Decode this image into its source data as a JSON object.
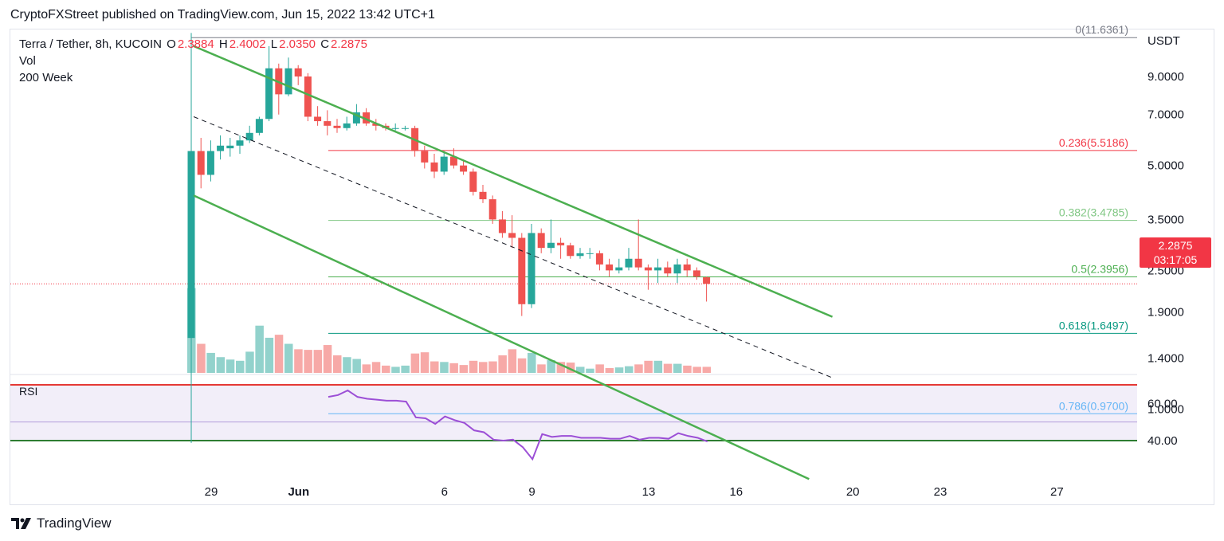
{
  "header": {
    "published": "CryptoFXStreet published on TradingView.com, Jun 15, 2022 13:42 UTC+1"
  },
  "legend": {
    "symbol": "Terra / Tether, 8h, KUCOIN",
    "o_label": "O",
    "o": "2.3884",
    "h_label": "H",
    "h": "2.4002",
    "l_label": "L",
    "l": "2.0350",
    "c_label": "C",
    "c": "2.2875",
    "vol": "Vol",
    "ma": "200 Week"
  },
  "axis": {
    "currency": "USDT",
    "price_ticks": [
      "9.0000",
      "7.0000",
      "5.0000",
      "3.5000",
      "2.5000",
      "1.9000",
      "1.4000",
      "1.0000"
    ],
    "rsi_ticks": [
      "60.00",
      "40.00"
    ],
    "date_ticks": [
      "29",
      "Jun",
      "6",
      "9",
      "13",
      "16",
      "20",
      "23",
      "27"
    ]
  },
  "last_price": {
    "price": "2.2875",
    "countdown": "03:17:05",
    "color": "#f23645"
  },
  "rsi": {
    "label": "RSI"
  },
  "branding": {
    "name": "TradingView"
  },
  "colors": {
    "up": "#26a69a",
    "down": "#ef5350",
    "channel": "#4caf50",
    "rsi_line": "#9c4fd6"
  },
  "chart_data": {
    "type": "candlestick",
    "symbol": "Terra / Tether",
    "interval": "8h",
    "exchange": "KUCOIN",
    "y_scale": "log",
    "candles": [
      {
        "o": 1.6,
        "h": 12.0,
        "l": 0.8,
        "c": 5.5
      },
      {
        "o": 5.5,
        "h": 6.0,
        "l": 4.3,
        "c": 4.7
      },
      {
        "o": 4.7,
        "h": 5.9,
        "l": 4.5,
        "c": 5.5
      },
      {
        "o": 5.5,
        "h": 6.1,
        "l": 5.2,
        "c": 5.7
      },
      {
        "o": 5.6,
        "h": 6.0,
        "l": 5.3,
        "c": 5.7
      },
      {
        "o": 5.7,
        "h": 6.1,
        "l": 5.4,
        "c": 5.9
      },
      {
        "o": 5.9,
        "h": 6.5,
        "l": 5.8,
        "c": 6.2
      },
      {
        "o": 6.2,
        "h": 6.9,
        "l": 6.1,
        "c": 6.8
      },
      {
        "o": 6.8,
        "h": 11.0,
        "l": 6.7,
        "c": 9.5
      },
      {
        "o": 9.5,
        "h": 9.8,
        "l": 7.0,
        "c": 8.0
      },
      {
        "o": 8.0,
        "h": 10.2,
        "l": 7.9,
        "c": 9.5
      },
      {
        "o": 9.5,
        "h": 9.7,
        "l": 8.5,
        "c": 9.0
      },
      {
        "o": 9.0,
        "h": 9.2,
        "l": 6.7,
        "c": 6.9
      },
      {
        "o": 6.9,
        "h": 7.4,
        "l": 6.5,
        "c": 6.7
      },
      {
        "o": 6.7,
        "h": 7.2,
        "l": 6.1,
        "c": 6.5
      },
      {
        "o": 6.5,
        "h": 6.8,
        "l": 6.2,
        "c": 6.4
      },
      {
        "o": 6.4,
        "h": 6.9,
        "l": 6.3,
        "c": 6.6
      },
      {
        "o": 6.6,
        "h": 7.5,
        "l": 6.5,
        "c": 7.1
      },
      {
        "o": 7.1,
        "h": 7.3,
        "l": 6.5,
        "c": 6.6
      },
      {
        "o": 6.6,
        "h": 6.8,
        "l": 6.3,
        "c": 6.5
      },
      {
        "o": 6.5,
        "h": 6.6,
        "l": 6.3,
        "c": 6.4
      },
      {
        "o": 6.4,
        "h": 6.6,
        "l": 6.3,
        "c": 6.4
      },
      {
        "o": 6.4,
        "h": 6.5,
        "l": 6.3,
        "c": 6.4
      },
      {
        "o": 6.4,
        "h": 6.5,
        "l": 5.3,
        "c": 5.5
      },
      {
        "o": 5.5,
        "h": 5.7,
        "l": 4.9,
        "c": 5.1
      },
      {
        "o": 5.1,
        "h": 5.4,
        "l": 4.6,
        "c": 4.8
      },
      {
        "o": 4.8,
        "h": 5.5,
        "l": 4.7,
        "c": 5.3
      },
      {
        "o": 5.3,
        "h": 5.6,
        "l": 4.9,
        "c": 5.0
      },
      {
        "o": 5.0,
        "h": 5.2,
        "l": 4.7,
        "c": 4.8
      },
      {
        "o": 4.8,
        "h": 4.9,
        "l": 4.1,
        "c": 4.2
      },
      {
        "o": 4.2,
        "h": 4.4,
        "l": 3.9,
        "c": 4.0
      },
      {
        "o": 4.0,
        "h": 4.1,
        "l": 3.4,
        "c": 3.5
      },
      {
        "o": 3.5,
        "h": 3.7,
        "l": 3.1,
        "c": 3.2
      },
      {
        "o": 3.2,
        "h": 3.6,
        "l": 2.9,
        "c": 3.1
      },
      {
        "o": 3.1,
        "h": 3.2,
        "l": 1.85,
        "c": 2.0
      },
      {
        "o": 2.0,
        "h": 3.4,
        "l": 1.95,
        "c": 3.2
      },
      {
        "o": 3.2,
        "h": 3.3,
        "l": 2.8,
        "c": 2.9
      },
      {
        "o": 2.9,
        "h": 3.5,
        "l": 2.8,
        "c": 3.0
      },
      {
        "o": 3.0,
        "h": 3.1,
        "l": 2.7,
        "c": 2.95
      },
      {
        "o": 2.95,
        "h": 3.0,
        "l": 2.7,
        "c": 2.75
      },
      {
        "o": 2.75,
        "h": 2.9,
        "l": 2.7,
        "c": 2.8
      },
      {
        "o": 2.8,
        "h": 2.9,
        "l": 2.7,
        "c": 2.8
      },
      {
        "o": 2.8,
        "h": 2.85,
        "l": 2.5,
        "c": 2.6
      },
      {
        "o": 2.6,
        "h": 2.7,
        "l": 2.4,
        "c": 2.5
      },
      {
        "o": 2.5,
        "h": 2.7,
        "l": 2.45,
        "c": 2.55
      },
      {
        "o": 2.55,
        "h": 2.9,
        "l": 2.5,
        "c": 2.7
      },
      {
        "o": 2.7,
        "h": 3.5,
        "l": 2.5,
        "c": 2.55
      },
      {
        "o": 2.55,
        "h": 2.6,
        "l": 2.2,
        "c": 2.5
      },
      {
        "o": 2.5,
        "h": 2.7,
        "l": 2.3,
        "c": 2.55
      },
      {
        "o": 2.55,
        "h": 2.65,
        "l": 2.4,
        "c": 2.45
      },
      {
        "o": 2.45,
        "h": 2.7,
        "l": 2.3,
        "c": 2.6
      },
      {
        "o": 2.6,
        "h": 2.7,
        "l": 2.4,
        "c": 2.5
      },
      {
        "o": 2.5,
        "h": 2.55,
        "l": 2.35,
        "c": 2.4
      },
      {
        "o": 2.3884,
        "h": 2.4002,
        "l": 2.035,
        "c": 2.2875
      }
    ],
    "volume": [
      14,
      4.8,
      3.3,
      2.6,
      2.2,
      2.0,
      3.5,
      7.8,
      5.8,
      6.3,
      4.8,
      3.9,
      3.8,
      3.8,
      4.6,
      2.9,
      2.6,
      2.3,
      1.4,
      1.8,
      1.2,
      1.0,
      1.2,
      3.2,
      3.4,
      1.9,
      1.8,
      1.6,
      1.3,
      2.0,
      1.8,
      1.9,
      2.9,
      3.9,
      2.4,
      3.3,
      1.4,
      2.1,
      1.8,
      1.7,
      1.0,
      0.7,
      1.4,
      0.8,
      0.9,
      1.1,
      1.4,
      2.0,
      2.0,
      1.5,
      1.5,
      1.2,
      1.0,
      1.0
    ],
    "rsi": [
      63.5,
      64.5,
      67.0,
      63.5,
      62.5,
      62.0,
      61.5,
      61.5,
      61.0,
      52.5,
      52.0,
      49.0,
      53.0,
      51.0,
      49.5,
      45.5,
      44.5,
      40.5,
      40.0,
      40.5,
      36.5,
      30.0,
      43.5,
      42.0,
      42.5,
      42.5,
      41.5,
      41.5,
      41.5,
      41.0,
      41.0,
      42.5,
      40.5,
      41.5,
      41.5,
      41.0,
      44.0,
      42.5,
      41.5,
      39.5
    ],
    "rsi_levels": [
      70,
      50,
      40
    ],
    "fibonacci": [
      {
        "level": "0",
        "price": 11.6361,
        "color": "#787b86"
      },
      {
        "level": "0.236",
        "price": 5.5186,
        "color": "#f23645"
      },
      {
        "level": "0.382",
        "price": 3.4785,
        "color": "#81c784"
      },
      {
        "level": "0.5",
        "price": 2.3956,
        "color": "#4caf50"
      },
      {
        "level": "0.618",
        "price": 1.6497,
        "color": "#089981"
      },
      {
        "level": "0.786",
        "price": 0.97,
        "color": "#64b5f6"
      }
    ],
    "channel": {
      "upper": {
        "from": [
          8.4,
          11.0
        ],
        "to": [
          19.3,
          1.84
        ]
      },
      "lower": {
        "from": [
          8.4,
          4.1
        ],
        "to": [
          18.5,
          0.63
        ]
      },
      "mid_dashed": {
        "from": [
          8.4,
          6.9
        ],
        "to": [
          19.3,
          1.23
        ]
      }
    }
  }
}
